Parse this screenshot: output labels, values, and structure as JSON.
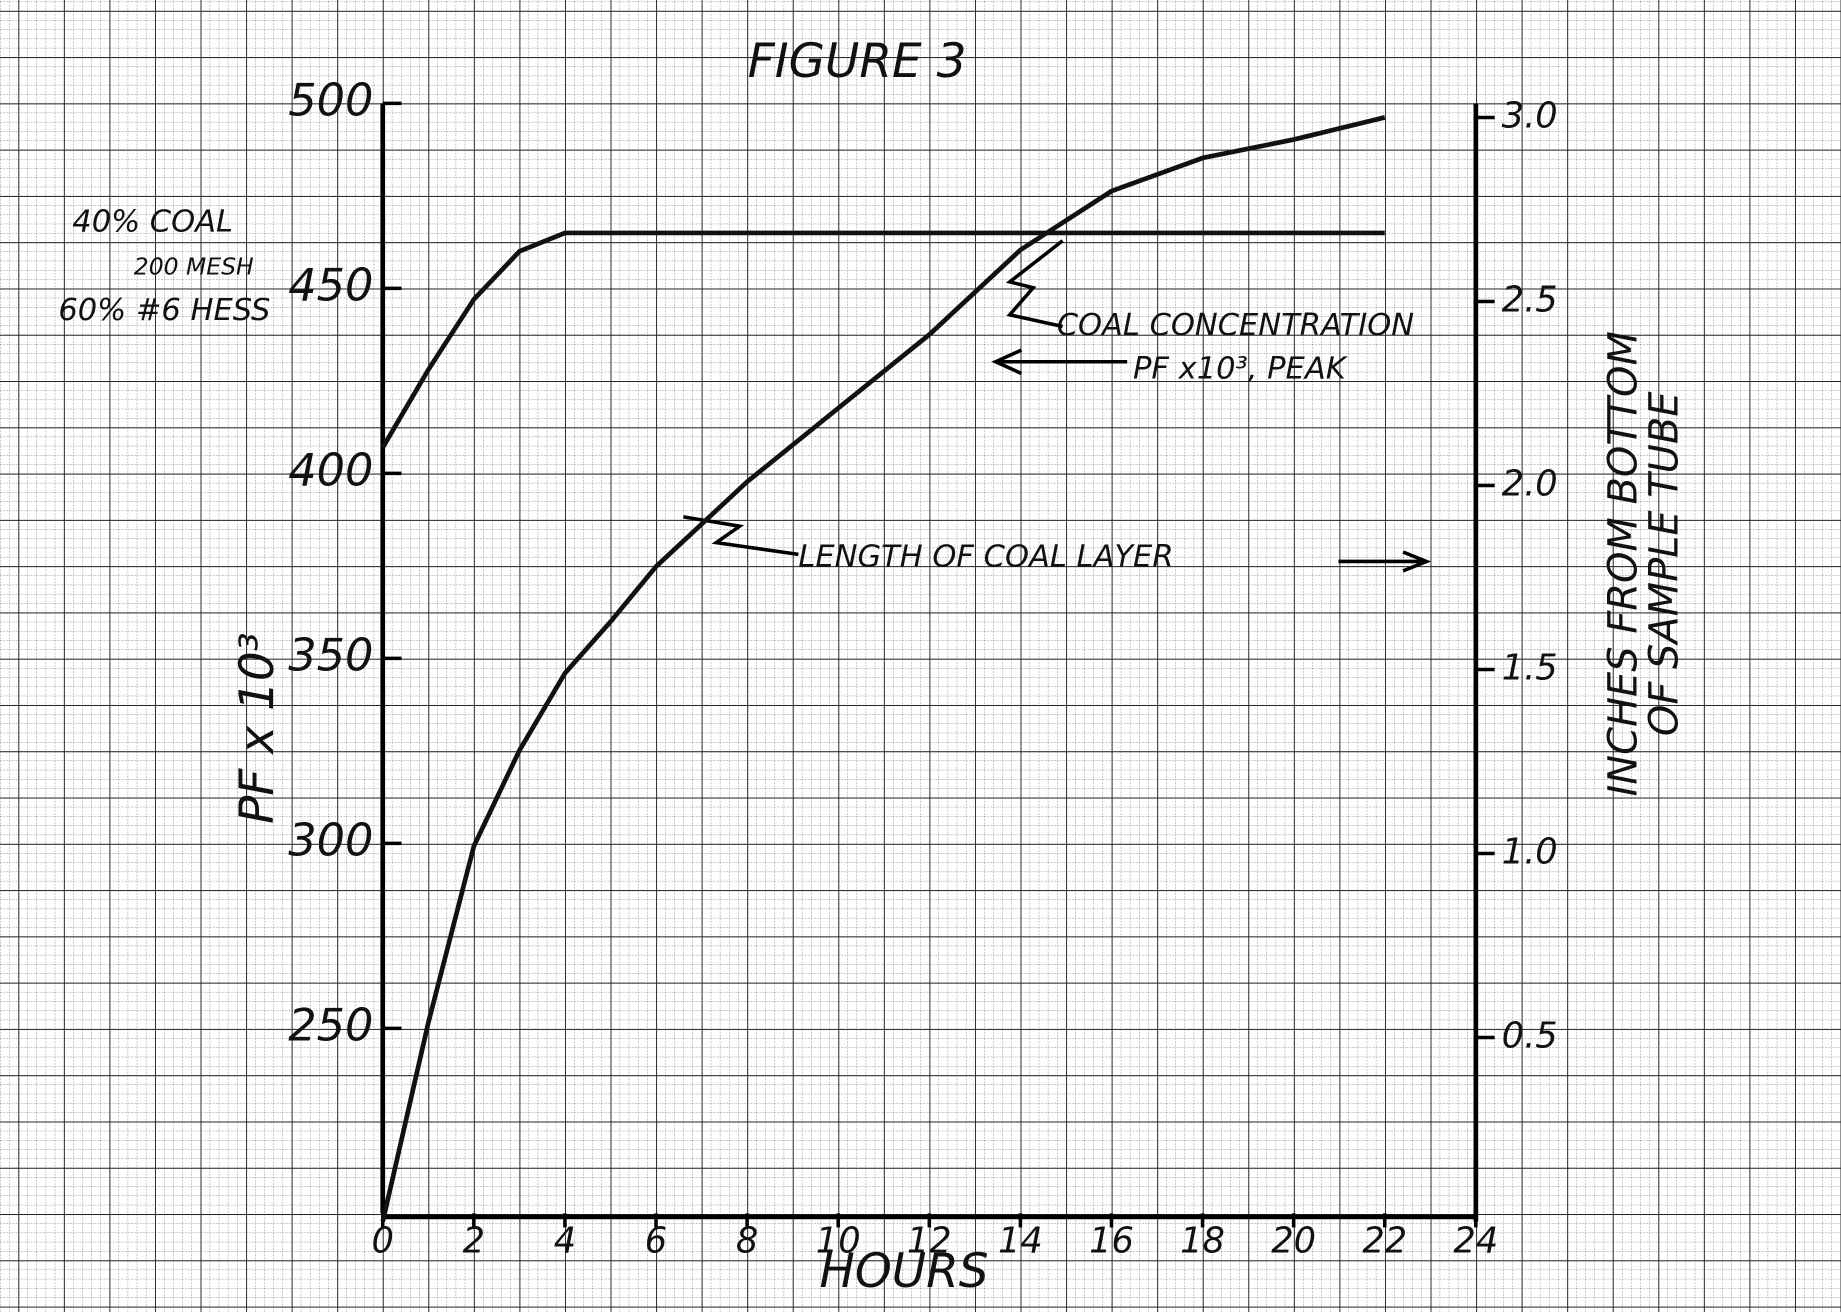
{
  "chart_data": {
    "type": "line",
    "title": "FIGURE 3",
    "x_label": "HOURS",
    "y_label": "PF x 10³",
    "y2_label": [
      "INCHES FROM BOTTOM",
      "OF SAMPLE TUBE"
    ],
    "annotations": [
      "40% COAL",
      "200 MESH",
      "60% #6 HESS",
      "COAL CONCENTRATION",
      "PF x10³, PEAK",
      "LENGTH OF COAL LAYER"
    ],
    "xlim": [
      0,
      24
    ],
    "xticks": [
      0,
      2,
      4,
      6,
      8,
      10,
      12,
      14,
      16,
      18,
      20,
      22,
      24
    ],
    "ylim": [
      200,
      500
    ],
    "yticks": [
      250,
      300,
      350,
      400,
      450,
      500
    ],
    "y2lim": [
      0,
      3.0
    ],
    "y2ticks": [
      0.5,
      {
        "value": 1.0,
        "label": "1.0"
      },
      1.5,
      {
        "value": 2.0,
        "label": "2.0"
      },
      2.5,
      {
        "value": 3.0,
        "label": "3.0"
      }
    ],
    "series": [
      {
        "color": "#111111",
        "x": [
          0,
          1,
          2,
          3,
          4,
          22
        ],
        "values": [
          407,
          428,
          447,
          460,
          465,
          465
        ]
      },
      {
        "color": "#111111",
        "axis": "y2",
        "x": [
          0,
          1,
          2,
          3,
          4,
          5,
          6,
          8,
          10,
          12,
          14,
          16,
          18,
          20,
          22
        ],
        "values": [
          0,
          0.54,
          1.02,
          1.28,
          1.49,
          1.63,
          1.78,
          2.01,
          2.21,
          2.41,
          2.64,
          2.8,
          2.89,
          2.94,
          3.0
        ]
      }
    ]
  }
}
